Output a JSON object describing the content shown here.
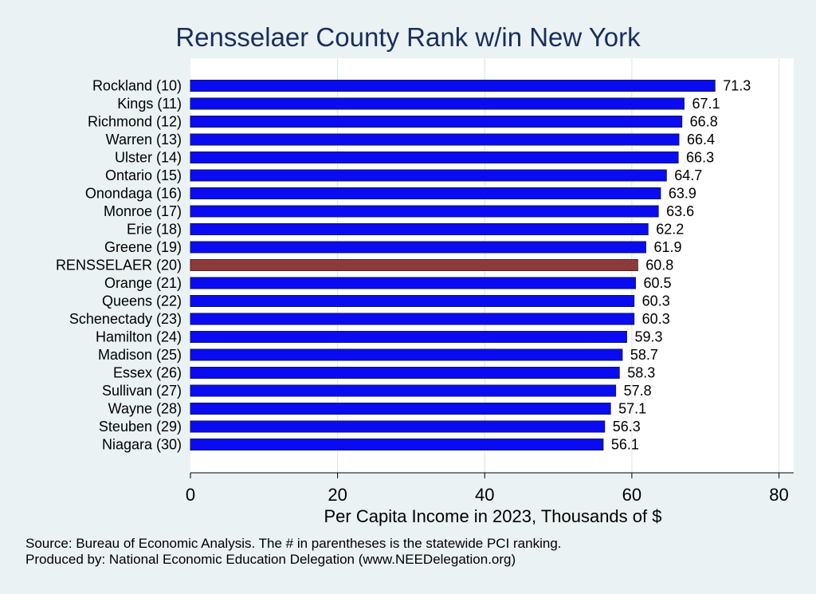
{
  "chart_data": {
    "type": "bar",
    "orientation": "horizontal",
    "title": "Rensselaer County Rank w/in New York",
    "xlabel": "Per Capita Income in 2023, Thousands of $",
    "ylabel": "",
    "xlim": [
      0,
      82
    ],
    "xticks": [
      0,
      20,
      40,
      60,
      80
    ],
    "grid": true,
    "categories": [
      "Rockland (10)",
      "Kings (11)",
      "Richmond (12)",
      "Warren (13)",
      "Ulster (14)",
      "Ontario (15)",
      "Onondaga (16)",
      "Monroe (17)",
      "Erie (18)",
      "Greene (19)",
      "RENSSELAER (20)",
      "Orange (21)",
      "Queens (22)",
      "Schenectady (23)",
      "Hamilton (24)",
      "Madison (25)",
      "Essex (26)",
      "Sullivan (27)",
      "Wayne (28)",
      "Steuben (29)",
      "Niagara (30)"
    ],
    "values": [
      71.3,
      67.1,
      66.8,
      66.4,
      66.3,
      64.7,
      63.9,
      63.6,
      62.2,
      61.9,
      60.8,
      60.5,
      60.3,
      60.3,
      59.3,
      58.7,
      58.3,
      57.8,
      57.1,
      56.3,
      56.1
    ],
    "value_labels": [
      "71.3",
      "67.1",
      "66.8",
      "66.4",
      "66.3",
      "64.7",
      "63.9",
      "63.6",
      "62.2",
      "61.9",
      "60.8",
      "60.5",
      "60.3",
      "60.3",
      "59.3",
      "58.7",
      "58.3",
      "57.8",
      "57.1",
      "56.3",
      "56.1"
    ],
    "highlight_category": "RENSSELAER (20)",
    "colors": {
      "bar": "#0b0bf2",
      "highlight": "#8c3a3a",
      "bar_edge": "#0a1a5a",
      "grid": "#d7e4ea",
      "plot_bg": "#ffffff",
      "page_bg": "#eaf2f3",
      "title": "#1a2e5c"
    }
  },
  "footer": {
    "source": "Source: Bureau of Economic Analysis. The # in parentheses is the statewide PCI ranking.",
    "produced_by": "Produced by: National Economic Education Delegation (www.NEEDelegation.org)"
  }
}
